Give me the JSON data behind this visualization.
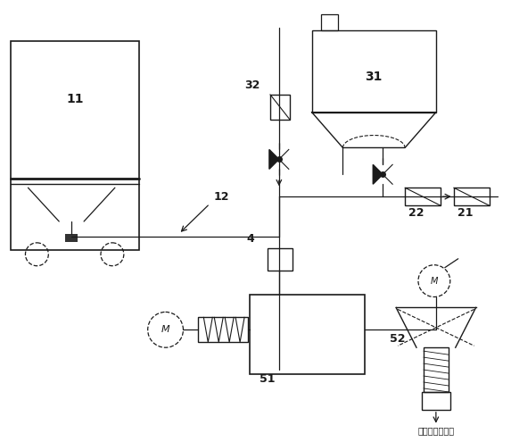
{
  "bg_color": "#ffffff",
  "lc": "#1a1a1a",
  "lw": 0.9,
  "bottom_chinese": "成料定量注射机",
  "fig_w": 5.73,
  "fig_h": 4.95,
  "dpi": 100
}
